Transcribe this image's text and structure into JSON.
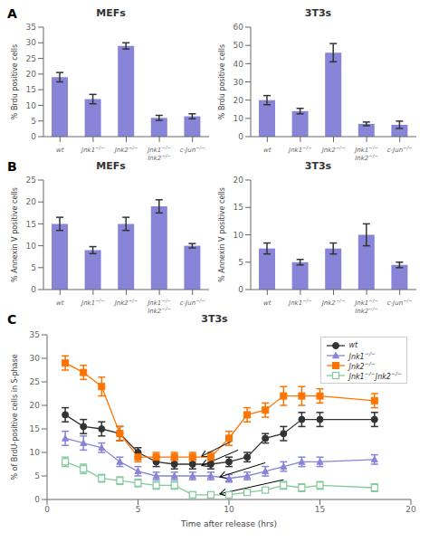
{
  "chart_data": [
    {
      "type": "bar",
      "title": "MEFs",
      "annotations": [
        "A"
      ],
      "ylabel": "% Brdu positive cells",
      "categories": [
        "wt",
        "Jnk1−/−",
        "Jnk2−/−",
        "Jnk1−/−\nJnk2−/−",
        "c-Jun−/−"
      ],
      "values": [
        19,
        12,
        29,
        6,
        6.5
      ],
      "errors": [
        1.5,
        1.5,
        1.0,
        0.8,
        0.8
      ],
      "ylim": [
        0,
        35
      ],
      "yticks": [
        0,
        5,
        10,
        15,
        20,
        25,
        30,
        35
      ],
      "color": "#8884d8",
      "grid": false
    },
    {
      "type": "bar",
      "title": "3T3s",
      "ylabel": "% Brdu positive cells",
      "categories": [
        "wt",
        "Jnk1−/−",
        "Jnk2−/−",
        "Jnk1−/−\nJnk2−/−",
        "c-Jun−/−"
      ],
      "values": [
        20,
        14,
        46,
        7,
        6.5
      ],
      "errors": [
        2.5,
        1.5,
        5.0,
        1.0,
        2.0
      ],
      "ylim": [
        0,
        60
      ],
      "yticks": [
        0,
        10,
        20,
        30,
        40,
        50,
        60
      ],
      "color": "#8884d8",
      "grid": false
    },
    {
      "type": "bar",
      "title": "MEFs",
      "annotations": [
        "B"
      ],
      "ylabel": "% Annexin V positive cells",
      "categories": [
        "wt",
        "Jnk1−/−",
        "Jnk2−/−",
        "Jnk1−/−\nJnk2−/−",
        "c-Jun−/−"
      ],
      "values": [
        15,
        9,
        15,
        19,
        10
      ],
      "errors": [
        1.5,
        0.8,
        1.5,
        1.5,
        0.5
      ],
      "ylim": [
        0,
        25
      ],
      "yticks": [
        0,
        5,
        10,
        15,
        20,
        25
      ],
      "color": "#8884d8",
      "grid": false
    },
    {
      "type": "bar",
      "title": "3T3s",
      "ylabel": "% Annexin V positive cells",
      "categories": [
        "wt",
        "Jnk1−/−",
        "Jnk2−/−",
        "Jnk1−/−\nJnk2−/−",
        "c-Jun−/−"
      ],
      "values": [
        7.5,
        5,
        7.5,
        10,
        4.5
      ],
      "errors": [
        1.0,
        0.5,
        1.0,
        2.0,
        0.5
      ],
      "ylim": [
        0,
        20
      ],
      "yticks": [
        0,
        5,
        10,
        15,
        20
      ],
      "color": "#8884d8",
      "grid": false
    },
    {
      "type": "line",
      "title": "3T3s",
      "annotations": [
        "C"
      ],
      "xlabel": "Time after release (hrs)",
      "ylabel": "% of BrdU-positive cells in S-phase",
      "xlim": [
        0,
        20
      ],
      "xticks": [
        0,
        5,
        10,
        15,
        20
      ],
      "ylim": [
        0,
        35
      ],
      "yticks": [
        0,
        5,
        10,
        15,
        20,
        25,
        30,
        35
      ],
      "grid": false,
      "legend": "upper right",
      "x": [
        1,
        2,
        3,
        4,
        5,
        6,
        7,
        8,
        9,
        10,
        11,
        12,
        13,
        14,
        15,
        18
      ],
      "series": [
        {
          "name": "wt",
          "color": "#333333",
          "marker": "circle",
          "line_style": "solid",
          "values": [
            18,
            15.5,
            15,
            14,
            10,
            8,
            7.5,
            7.5,
            7.5,
            8,
            9,
            13,
            14,
            17,
            17,
            17
          ],
          "errors": [
            1.5,
            1.5,
            1.5,
            1.5,
            1.0,
            1.0,
            1.0,
            1.0,
            1.0,
            1.0,
            1.0,
            1.0,
            1.5,
            1.5,
            1.5,
            1.5
          ]
        },
        {
          "name": "Jnk1−/−",
          "color": "#8884d8",
          "marker": "triangle",
          "line_style": "solid",
          "values": [
            13,
            12,
            11,
            8,
            6,
            5,
            5,
            5,
            5,
            4.5,
            5,
            6,
            7,
            8,
            8,
            8.5
          ],
          "errors": [
            1.5,
            1.5,
            1.0,
            1.0,
            1.0,
            0.8,
            0.8,
            0.8,
            0.8,
            0.8,
            0.8,
            1.0,
            1.0,
            1.0,
            1.0,
            1.0
          ]
        },
        {
          "name": "Jnk2−/−",
          "color": "#ff7300",
          "marker": "square",
          "line_style": "solid",
          "values": [
            29,
            27,
            24,
            14,
            9,
            9,
            9,
            9,
            9,
            13,
            18,
            19,
            22,
            22,
            22,
            21
          ],
          "errors": [
            1.5,
            1.5,
            2.0,
            1.5,
            1.0,
            1.0,
            1.0,
            1.0,
            1.0,
            1.5,
            1.5,
            1.5,
            2.0,
            2.0,
            1.5,
            1.5
          ]
        },
        {
          "name": "Jnk1−/−Jnk2−/−",
          "color": "#82ca9d",
          "marker": "open_square",
          "line_style": "solid",
          "values": [
            8,
            6.5,
            4.5,
            4,
            3.5,
            3,
            3,
            1,
            1,
            1,
            1.5,
            2,
            3,
            2.5,
            3,
            2.5
          ],
          "errors": [
            1.0,
            1.0,
            0.8,
            0.8,
            0.8,
            0.8,
            0.8,
            0.5,
            0.5,
            0.5,
            0.5,
            0.5,
            0.8,
            0.8,
            0.8,
            0.8
          ]
        }
      ],
      "arrows": [
        {
          "x": 8.5,
          "y": 9.2,
          "x_from": 10.2,
          "y_from": 12.5
        },
        {
          "x": 8.5,
          "y": 7.2,
          "x_from": 10.5,
          "y_from": 10.5
        },
        {
          "x": 9.5,
          "y": 4.8,
          "x_from": 12.0,
          "y_from": 7.8
        },
        {
          "x": 9.5,
          "y": 1.2,
          "x_from": 13.0,
          "y_from": 4.2
        }
      ]
    }
  ]
}
